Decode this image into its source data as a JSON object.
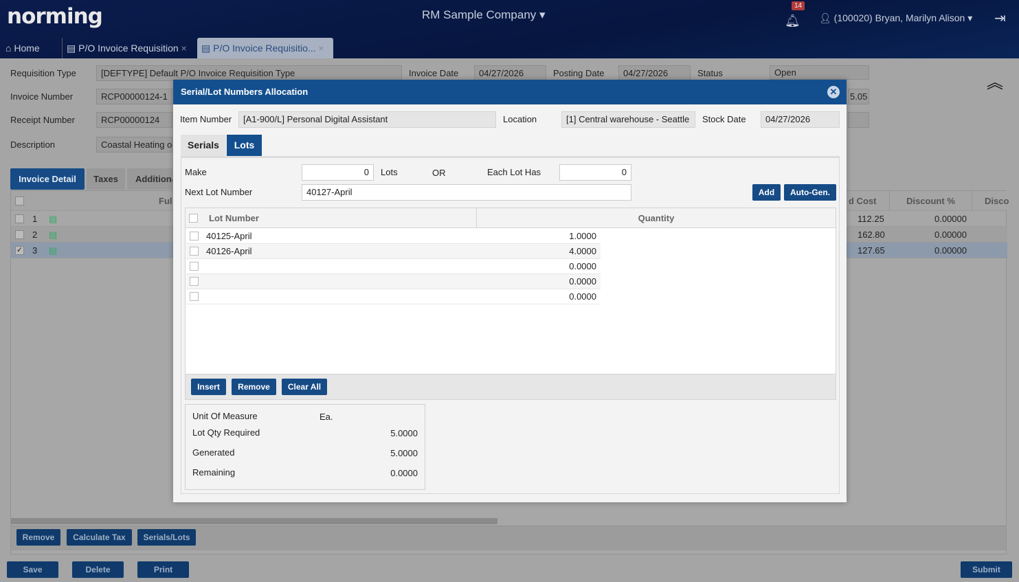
{
  "header": {
    "logo": "norming",
    "company": "RM Sample Company",
    "notifications": "14",
    "user": "(100020) Bryan, Marilyn Alison"
  },
  "tabs": [
    {
      "label": "Home"
    },
    {
      "label": "P/O Invoice Requisition"
    },
    {
      "label": "P/O Invoice Requisitio..."
    }
  ],
  "form": {
    "requisition_type_label": "Requisition Type",
    "requisition_type": "[DEFTYPE] Default P/O Invoice Requisition Type",
    "invoice_date_label": "Invoice Date",
    "invoice_date": "04/27/2026",
    "posting_date_label": "Posting Date",
    "posting_date": "04/27/2026",
    "status_label": "Status",
    "status": "Open",
    "invoice_number_label": "Invoice Number",
    "invoice_number": "RCP00000124-1",
    "receipt_number_label": "Receipt Number",
    "receipt_number": "RCP00000124",
    "description_label": "Description",
    "description": "Coastal Heating of",
    "partial_amount": "5.05"
  },
  "detail_tabs": [
    "Invoice Detail",
    "Taxes",
    "Additional"
  ],
  "grid": {
    "columns": [
      "Ful",
      "d Cost",
      "Discount %",
      "Disco"
    ],
    "rows": [
      {
        "num": "1",
        "cost": "112.25",
        "discount": "0.00000",
        "checked": false
      },
      {
        "num": "2",
        "cost": "162.80",
        "discount": "0.00000",
        "checked": false
      },
      {
        "num": "3",
        "cost": "127.65",
        "discount": "0.00000",
        "checked": true
      }
    ]
  },
  "grid_buttons": [
    "Remove",
    "Calculate Tax",
    "Serials/Lots"
  ],
  "footer_buttons": {
    "save": "Save",
    "delete": "Delete",
    "print": "Print",
    "submit": "Submit"
  },
  "modal": {
    "title": "Serial/Lot Numbers Allocation",
    "item_number_label": "Item Number",
    "item_number": "[A1-900/L] Personal  Digital Assistant",
    "location_label": "Location",
    "location": "[1] Central warehouse - Seattle",
    "stock_date_label": "Stock Date",
    "stock_date": "04/27/2026",
    "tabs": [
      "Serials",
      "Lots"
    ],
    "make_label": "Make",
    "make_value": "0",
    "lots_label": "Lots",
    "or_label": "OR",
    "each_lot_label": "Each Lot Has",
    "each_lot_value": "0",
    "next_lot_label": "Next Lot Number",
    "next_lot_value": "40127-April",
    "add": "Add",
    "auto_gen": "Auto-Gen.",
    "columns": [
      "Lot Number",
      "Quantity"
    ],
    "lots": [
      {
        "lot": "40125-April",
        "qty": "1.0000"
      },
      {
        "lot": "40126-April",
        "qty": "4.0000"
      },
      {
        "lot": "",
        "qty": "0.0000"
      },
      {
        "lot": "",
        "qty": "0.0000"
      },
      {
        "lot": "",
        "qty": "0.0000"
      }
    ],
    "insert": "Insert",
    "remove": "Remove",
    "clear_all": "Clear All",
    "summary": {
      "uom_label": "Unit Of Measure",
      "uom": "Ea.",
      "required_label": "Lot Qty Required",
      "required": "5.0000",
      "generated_label": "Generated",
      "generated": "5.0000",
      "remaining_label": "Remaining",
      "remaining": "0.0000"
    }
  }
}
